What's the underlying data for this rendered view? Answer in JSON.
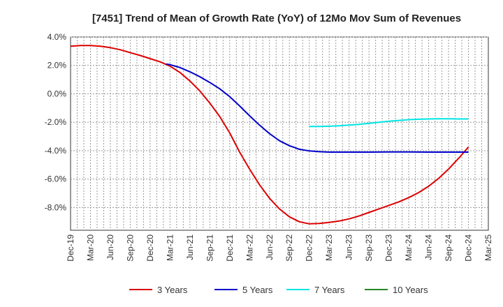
{
  "chart_data": {
    "type": "line",
    "title": "[7451]  Trend of Mean of Growth Rate (YoY) of 12Mo Mov Sum of Revenues",
    "xlabel": "",
    "ylabel": "",
    "x_tick_labels": [
      "Dec-19",
      "Mar-20",
      "Jun-20",
      "Sep-20",
      "Dec-20",
      "Mar-21",
      "Jun-21",
      "Sep-21",
      "Dec-21",
      "Mar-22",
      "Jun-22",
      "Sep-22",
      "Dec-22",
      "Mar-23",
      "Jun-23",
      "Sep-23",
      "Dec-23",
      "Mar-24",
      "Jun-24",
      "Sep-24",
      "Dec-24",
      "Mar-25"
    ],
    "y_tick_labels": [
      "4.0%",
      "2.0%",
      "0.0%",
      "-2.0%",
      "-4.0%",
      "-6.0%",
      "-8.0%"
    ],
    "y_ticks": [
      4,
      2,
      0,
      -2,
      -4,
      -6,
      -8
    ],
    "ylim": [
      -9.6,
      4.0
    ],
    "x_range_quarters": [
      0,
      21
    ],
    "grid": true,
    "legend_position": "bottom",
    "series": [
      {
        "name": "3 Years",
        "color": "#dd0000",
        "x": [
          0,
          0.5,
          1,
          1.5,
          2,
          2.5,
          3,
          3.5,
          4,
          4.5,
          5,
          5.5,
          6,
          6.5,
          7,
          7.5,
          8,
          8.5,
          9,
          9.5,
          10,
          10.5,
          11,
          11.5,
          12,
          12.5,
          13,
          13.5,
          14,
          14.5,
          15,
          15.5,
          16,
          16.5,
          17,
          17.5,
          18,
          18.5,
          19,
          19.5,
          20
        ],
        "values": [
          3.35,
          3.4,
          3.4,
          3.35,
          3.25,
          3.1,
          2.9,
          2.7,
          2.48,
          2.25,
          1.95,
          1.5,
          0.9,
          0.2,
          -0.65,
          -1.6,
          -2.75,
          -4.1,
          -5.3,
          -6.4,
          -7.35,
          -8.1,
          -8.65,
          -9.0,
          -9.15,
          -9.12,
          -9.05,
          -8.95,
          -8.8,
          -8.6,
          -8.35,
          -8.1,
          -7.85,
          -7.6,
          -7.3,
          -6.95,
          -6.5,
          -5.95,
          -5.3,
          -4.55,
          -3.75
        ]
      },
      {
        "name": "5 Years",
        "color": "#0000cc",
        "x": [
          4.8,
          5,
          5.5,
          6,
          6.5,
          7,
          7.5,
          8,
          8.5,
          9,
          9.5,
          10,
          10.5,
          11,
          11.5,
          12,
          12.5,
          13,
          13.5,
          14,
          15,
          16,
          17,
          18,
          19,
          20
        ],
        "values": [
          2.1,
          2.05,
          1.85,
          1.55,
          1.2,
          0.8,
          0.35,
          -0.2,
          -0.85,
          -1.55,
          -2.2,
          -2.8,
          -3.3,
          -3.65,
          -3.9,
          -4.02,
          -4.07,
          -4.1,
          -4.1,
          -4.1,
          -4.1,
          -4.09,
          -4.09,
          -4.1,
          -4.1,
          -4.1
        ]
      },
      {
        "name": "7 Years",
        "color": "#00e5e5",
        "x": [
          12,
          12.5,
          13,
          13.5,
          14,
          14.5,
          15,
          15.5,
          16,
          16.5,
          17,
          17.5,
          18,
          18.5,
          19,
          19.5,
          20
        ],
        "values": [
          -2.3,
          -2.3,
          -2.28,
          -2.25,
          -2.2,
          -2.15,
          -2.08,
          -2.0,
          -1.93,
          -1.87,
          -1.82,
          -1.79,
          -1.77,
          -1.76,
          -1.76,
          -1.77,
          -1.77
        ]
      },
      {
        "name": "10 Years",
        "color": "#228822",
        "x": [],
        "values": []
      }
    ]
  }
}
